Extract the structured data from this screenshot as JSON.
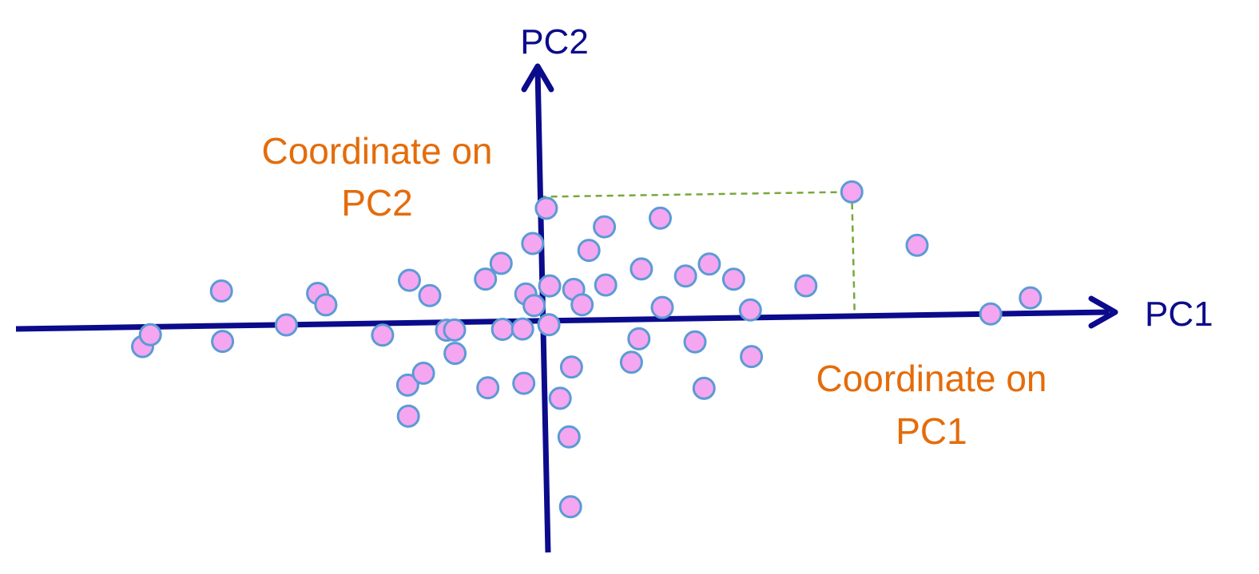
{
  "labels": {
    "pc1": "PC1",
    "pc2": "PC2",
    "coord_pc2_line1": "Coordinate on",
    "coord_pc2_line2": "PC2",
    "coord_pc1_line1": "Coordinate on",
    "coord_pc1_line2": "PC1"
  },
  "colors": {
    "axis": "#0b0b8c",
    "annotation": "#e46c0a",
    "point_fill": "#f5a6f0",
    "point_stroke": "#5b9bd5",
    "guide": "#77a83a"
  },
  "highlighted_point": {
    "pc1": 3.9,
    "pc2": 1.6
  },
  "points": [
    [
      -5.0,
      -0.25
    ],
    [
      -4.9,
      -0.1
    ],
    [
      -4.0,
      -0.2
    ],
    [
      -4.0,
      0.45
    ],
    [
      -3.2,
      0.0
    ],
    [
      -2.8,
      0.4
    ],
    [
      -2.7,
      0.25
    ],
    [
      -2.0,
      -0.15
    ],
    [
      -1.65,
      0.55
    ],
    [
      -1.7,
      -0.8
    ],
    [
      -1.7,
      -1.2
    ],
    [
      -1.2,
      -0.1
    ],
    [
      -1.5,
      -0.65
    ],
    [
      -1.4,
      0.35
    ],
    [
      -1.1,
      -0.4
    ],
    [
      -1.1,
      -0.1
    ],
    [
      -0.7,
      0.55
    ],
    [
      -0.7,
      -0.85
    ],
    [
      -0.5,
      0.75
    ],
    [
      -0.5,
      -0.1
    ],
    [
      -0.2,
      0.35
    ],
    [
      -0.1,
      0.2
    ],
    [
      -0.25,
      -0.1
    ],
    [
      -0.25,
      -0.8
    ],
    [
      -0.1,
      1.0
    ],
    [
      0.1,
      0.45
    ],
    [
      0.3,
      -1.5
    ],
    [
      0.08,
      1.45
    ],
    [
      0.08,
      -0.05
    ],
    [
      0.4,
      0.4
    ],
    [
      0.2,
      -1.0
    ],
    [
      0.35,
      -0.6
    ],
    [
      0.5,
      0.2
    ],
    [
      0.6,
      0.9
    ],
    [
      0.8,
      1.2
    ],
    [
      0.8,
      0.45
    ],
    [
      1.1,
      -0.55
    ],
    [
      1.2,
      -0.25
    ],
    [
      1.25,
      0.65
    ],
    [
      1.5,
      0.15
    ],
    [
      1.5,
      1.3
    ],
    [
      1.8,
      0.55
    ],
    [
      1.9,
      -0.3
    ],
    [
      2.0,
      -0.9
    ],
    [
      2.1,
      0.7
    ],
    [
      2.4,
      0.5
    ],
    [
      2.6,
      0.1
    ],
    [
      2.6,
      -0.5
    ],
    [
      3.3,
      0.4
    ],
    [
      4.7,
      0.9
    ],
    [
      5.6,
      0.0
    ],
    [
      6.1,
      0.2
    ],
    [
      0.3,
      -2.4
    ],
    [
      3.9,
      1.6
    ]
  ]
}
